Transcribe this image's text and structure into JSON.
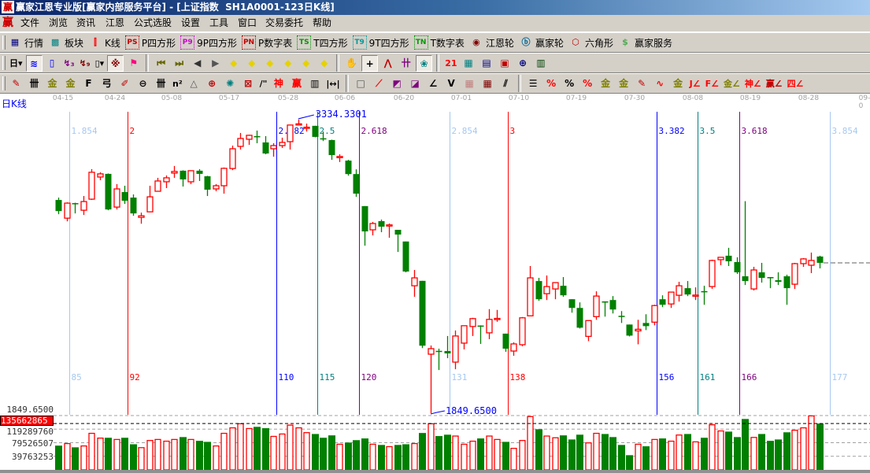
{
  "window": {
    "title": "赢家江恩专业版[赢家内部服务平台] - [上证指数  SH1A0001-123日K线]",
    "logo_text": "赢"
  },
  "menu": {
    "logo_text": "赢",
    "items": [
      "文件",
      "浏览",
      "资讯",
      "江恩",
      "公式选股",
      "设置",
      "工具",
      "窗口",
      "交易委托",
      "帮助"
    ]
  },
  "toolbar_main": [
    {
      "icon": "quote-table-icon",
      "glyph": "▦",
      "color": "#000080",
      "label": "行情"
    },
    {
      "icon": "sector-grid-icon",
      "glyph": "▩",
      "color": "#008080",
      "label": "板块"
    },
    {
      "icon": "candlestick-icon",
      "glyph": "⫿",
      "color": "#ff0000",
      "label": "K线"
    },
    {
      "icon": "ps-box-icon",
      "glyph": "PS",
      "color": "#c00000",
      "label": "P四方形",
      "boxed": true
    },
    {
      "icon": "p9-box-icon",
      "glyph": "P9",
      "color": "#cc00cc",
      "label": "9P四方形",
      "boxed": true
    },
    {
      "icon": "pn-box-icon",
      "glyph": "PN",
      "color": "#c00000",
      "label": "P数字表",
      "boxed": true
    },
    {
      "icon": "ts-box-icon",
      "glyph": "TS",
      "color": "#009900",
      "label": "T四方形",
      "boxed": true
    },
    {
      "icon": "t9-box-icon",
      "glyph": "T9",
      "color": "#009999",
      "label": "9T四方形",
      "boxed": true
    },
    {
      "icon": "tn-box-icon",
      "glyph": "TN",
      "color": "#009900",
      "label": "T数字表",
      "boxed": true
    },
    {
      "icon": "gann-wheel-icon",
      "glyph": "◉",
      "color": "#800000",
      "label": "江恩轮"
    },
    {
      "icon": "winner-wheel-icon",
      "glyph": "ⓑ",
      "color": "#006699",
      "label": "赢家轮"
    },
    {
      "icon": "hexagon-icon",
      "glyph": "⬡",
      "color": "#c00000",
      "label": "六角形"
    },
    {
      "icon": "dollar-service-icon",
      "glyph": "$",
      "color": "#55aa55",
      "label": "赢家服务"
    }
  ],
  "toolbar_tools": [
    [
      {
        "icon": "period-day-dropdown",
        "glyph": "日▾",
        "color": "#000"
      },
      {
        "icon": "wave-chart-icon",
        "glyph": "≋",
        "color": "#0000ff",
        "pressed": true
      },
      {
        "icon": "clipboard-icon",
        "glyph": "▯",
        "color": "#0000ff"
      },
      {
        "icon": "wave-3-icon",
        "glyph": "↯₃",
        "color": "#800080"
      },
      {
        "icon": "wave-9-icon",
        "glyph": "↯₉",
        "color": "#800000"
      },
      {
        "icon": "candle-type-dropdown",
        "glyph": "▯▾",
        "color": "#000"
      },
      {
        "icon": "pattern-icon",
        "glyph": "※",
        "color": "#800000",
        "pressed": true
      },
      {
        "icon": "flag-icon",
        "glyph": "⚑",
        "color": "#ff0080"
      }
    ],
    [
      {
        "icon": "first-page-icon",
        "glyph": "⏮",
        "color": "#666600"
      },
      {
        "icon": "last-page-icon",
        "glyph": "⏭",
        "color": "#666600"
      },
      {
        "icon": "scroll-left-icon",
        "glyph": "◀",
        "color": "#333"
      },
      {
        "icon": "scroll-right-icon",
        "glyph": "▶",
        "color": "#555"
      },
      {
        "icon": "move-left-icon",
        "glyph": "◆",
        "color": "#e6d200"
      },
      {
        "icon": "move-right-icon",
        "glyph": "◆",
        "color": "#e6d200"
      },
      {
        "icon": "expand-horizontal-icon",
        "glyph": "◆",
        "color": "#e6d200"
      },
      {
        "icon": "shrink-horizontal-icon",
        "glyph": "◆",
        "color": "#e6d200"
      },
      {
        "icon": "expand-all-icon",
        "glyph": "◆",
        "color": "#e6d200"
      },
      {
        "icon": "shrink-all-icon",
        "glyph": "◆",
        "color": "#e6d200"
      }
    ],
    [
      {
        "icon": "hand-pan-icon",
        "glyph": "✋",
        "color": "#000"
      },
      {
        "icon": "crosshair-icon",
        "glyph": "+",
        "color": "#000",
        "pressed": true
      },
      {
        "icon": "line-draw-icon",
        "glyph": "⋀",
        "color": "#c00000"
      },
      {
        "icon": "indicator-icon",
        "glyph": "卄",
        "color": "#800080"
      },
      {
        "icon": "brain-icon",
        "glyph": "❀",
        "color": "#008080",
        "pressed": true
      }
    ],
    [
      {
        "icon": "calendar-icon",
        "glyph": "21",
        "color": "#ff0000"
      },
      {
        "icon": "calculator-icon",
        "glyph": "▦",
        "color": "#008080"
      },
      {
        "icon": "notepad-icon",
        "glyph": "▤",
        "color": "#000080"
      },
      {
        "icon": "save-disk-icon",
        "glyph": "▣",
        "color": "#c00000"
      },
      {
        "icon": "network-icon",
        "glyph": "⊕",
        "color": "#000080"
      },
      {
        "icon": "printer-icon",
        "glyph": "▥",
        "color": "#004000"
      }
    ]
  ],
  "toolbar_draw": [
    [
      {
        "icon": "pen-icon",
        "glyph": "✎",
        "color": "#c00000"
      },
      {
        "icon": "hash-lines-icon",
        "glyph": "卌",
        "color": "#000"
      },
      {
        "icon": "gold-lines-icon",
        "glyph": "金",
        "color": "#808000"
      },
      {
        "icon": "gold-split-icon",
        "glyph": "金",
        "color": "#808000"
      },
      {
        "icon": "fibonacci-f-icon",
        "glyph": "F",
        "color": "#000"
      },
      {
        "icon": "spiral-icon",
        "glyph": "弓",
        "color": "#000"
      },
      {
        "icon": "marker-pen-icon",
        "glyph": "✐",
        "color": "#c00000"
      },
      {
        "icon": "circle-cycle-icon",
        "glyph": "⊖",
        "color": "#000"
      },
      {
        "icon": "period-lines-icon",
        "glyph": "卌",
        "color": "#000"
      },
      {
        "icon": "n-squared-icon",
        "glyph": "n²",
        "color": "#000"
      },
      {
        "icon": "triangle-icon",
        "glyph": "△",
        "color": "#555"
      },
      {
        "icon": "target-icon",
        "glyph": "⊕",
        "color": "#c00000"
      },
      {
        "icon": "web-icon",
        "glyph": "✺",
        "color": "#008080"
      },
      {
        "icon": "web-square-icon",
        "glyph": "⊠",
        "color": "#c00000"
      },
      {
        "icon": "angle-lines-icon",
        "glyph": "/\"",
        "color": "#000"
      },
      {
        "icon": "shen-icon",
        "glyph": "神",
        "color": "#ff0000"
      },
      {
        "icon": "ying-icon",
        "glyph": "赢",
        "color": "#ff0000"
      },
      {
        "icon": "ruler-icon",
        "glyph": "▥",
        "color": "#000"
      },
      {
        "icon": "measure-width-icon",
        "glyph": "|↔|",
        "color": "#000"
      }
    ],
    [
      {
        "icon": "box-icon",
        "glyph": "□",
        "color": "#555"
      },
      {
        "icon": "fan-lines-icon",
        "glyph": "⟋",
        "color": "#ff0000"
      },
      {
        "icon": "box-fan-icon",
        "glyph": "◩",
        "color": "#800080"
      },
      {
        "icon": "box-fan-down-icon",
        "glyph": "◪",
        "color": "#800080"
      },
      {
        "icon": "angle-fan-icon",
        "glyph": "∠",
        "color": "#000"
      },
      {
        "icon": "v-lines-icon",
        "glyph": "V",
        "color": "#000"
      },
      {
        "icon": "grid-icon",
        "glyph": "▦",
        "color": "#c08080"
      },
      {
        "icon": "grid-arrow-icon",
        "glyph": "▦",
        "color": "#800000"
      },
      {
        "icon": "parallel-lines-icon",
        "glyph": "⫽",
        "color": "#000"
      }
    ],
    [
      {
        "icon": "table-lines-icon",
        "glyph": "☰",
        "color": "#000"
      },
      {
        "icon": "percent-slash-icon",
        "glyph": "%",
        "color": "#ff0000"
      },
      {
        "icon": "percent-icon",
        "glyph": "%",
        "color": "#000"
      },
      {
        "icon": "percent-lines-icon",
        "glyph": "%",
        "color": "#ff0000"
      },
      {
        "icon": "gold-circle-icon",
        "glyph": "金",
        "color": "#808000"
      },
      {
        "icon": "gold-bars-icon",
        "glyph": "金",
        "color": "#808000"
      },
      {
        "icon": "pen-stand-icon",
        "glyph": "✎",
        "color": "#c00000"
      },
      {
        "icon": "wave-box-icon",
        "glyph": "∿",
        "color": "#ff0000"
      },
      {
        "icon": "gold-box-icon",
        "glyph": "金",
        "color": "#808000"
      },
      {
        "icon": "j-angle-icon",
        "glyph": "J∠",
        "color": "#ff0000"
      },
      {
        "icon": "f-angle-icon",
        "glyph": "F∠",
        "color": "#ff0000"
      },
      {
        "icon": "gold-angle-icon",
        "glyph": "金∠",
        "color": "#808000"
      },
      {
        "icon": "shen-angle-icon",
        "glyph": "神∠",
        "color": "#ff0000"
      },
      {
        "icon": "ying-angle-icon",
        "glyph": "赢∠",
        "color": "#c00000"
      },
      {
        "icon": "si-angle-icon",
        "glyph": "四∠",
        "color": "#ff0000"
      }
    ]
  ],
  "chart_data": {
    "type": "candlestick",
    "period_label": "日K线",
    "x_tick_labels": [
      "04-15",
      "04-24",
      "05-08",
      "05-17",
      "05-28",
      "06-06",
      "06-20",
      "07-01",
      "07-10",
      "07-19",
      "07-30",
      "08-08",
      "08-19",
      "08-28",
      "09-0"
    ],
    "colors": {
      "up": "#ff0000",
      "down": "#008000"
    },
    "ohlc_fields": [
      "open",
      "high",
      "low",
      "close"
    ],
    "ohlc": [
      [
        2928,
        2940,
        2856,
        2872
      ],
      [
        2836,
        2916,
        2820,
        2912
      ],
      [
        2912,
        2914,
        2860,
        2910
      ],
      [
        2876,
        2948,
        2852,
        2920
      ],
      [
        2932,
        3084,
        2928,
        3068
      ],
      [
        3044,
        3068,
        3028,
        3060
      ],
      [
        3060,
        3062,
        2876,
        2880
      ],
      [
        2892,
        3008,
        2880,
        2984
      ],
      [
        2968,
        3000,
        2908,
        2924
      ],
      [
        2940,
        2956,
        2848,
        2860
      ],
      [
        2840,
        2864,
        2808,
        2848
      ],
      [
        2868,
        3000,
        2866,
        2944
      ],
      [
        2972,
        3040,
        2970,
        3024
      ],
      [
        3020,
        3052,
        2988,
        3040
      ],
      [
        3064,
        3100,
        3040,
        3072
      ],
      [
        3076,
        3078,
        2996,
        3032
      ],
      [
        3020,
        3078,
        3008,
        3076
      ],
      [
        3076,
        3084,
        3024,
        3060
      ],
      [
        3048,
        3050,
        2948,
        2980
      ],
      [
        2984,
        3008,
        2972,
        3000
      ],
      [
        3000,
        3092,
        2960,
        3088
      ],
      [
        3087,
        3203,
        3079,
        3187
      ],
      [
        3199,
        3267,
        3183,
        3239
      ],
      [
        3235,
        3258,
        3207,
        3255
      ],
      [
        3251,
        3279,
        3215,
        3249
      ],
      [
        3219,
        3251,
        3159,
        3163
      ],
      [
        3187,
        3215,
        3147,
        3203
      ],
      [
        3203,
        3243,
        3191,
        3219
      ],
      [
        3223,
        3309,
        3183,
        3307
      ],
      [
        3310,
        3334.33,
        3307,
        3313
      ],
      [
        3294,
        3314,
        3274,
        3296
      ],
      [
        3303,
        3303,
        3245,
        3247
      ],
      [
        3240,
        3274,
        3226,
        3238
      ],
      [
        3231,
        3233,
        3131,
        3155
      ],
      [
        3146,
        3159,
        3120,
        3148
      ],
      [
        3127,
        3131,
        3051,
        3059
      ],
      [
        3059,
        3083,
        2944,
        2960
      ],
      [
        2897,
        2897,
        2697,
        2769
      ],
      [
        2777,
        2817,
        2749,
        2809
      ],
      [
        2821,
        2829,
        2765,
        2793
      ],
      [
        2800,
        2809,
        2737,
        2802
      ],
      [
        2777,
        2777,
        2665,
        2753
      ],
      [
        2718,
        2718,
        2562,
        2566
      ],
      [
        2494,
        2574,
        2438,
        2534
      ],
      [
        2519,
        2519,
        2179,
        2191
      ],
      [
        2148,
        2192,
        1849.65,
        2176
      ],
      [
        2165,
        2176,
        2068,
        2163
      ],
      [
        2164,
        2240,
        2128,
        2152
      ],
      [
        2108,
        2268,
        2072,
        2240
      ],
      [
        2204,
        2292,
        2172,
        2292
      ],
      [
        2288,
        2332,
        2240,
        2328
      ],
      [
        2293,
        2294,
        2200,
        2290
      ],
      [
        2256,
        2376,
        2224,
        2324
      ],
      [
        2327,
        2372,
        2312,
        2329
      ],
      [
        2252,
        2252,
        2160,
        2176
      ],
      [
        2164,
        2208,
        2140,
        2200
      ],
      [
        2196,
        2336,
        2188,
        2332
      ],
      [
        2342,
        2594,
        2342,
        2534
      ],
      [
        2518,
        2534,
        2418,
        2426
      ],
      [
        2454,
        2546,
        2422,
        2490
      ],
      [
        2478,
        2510,
        2426,
        2510
      ],
      [
        2494,
        2538,
        2438,
        2446
      ],
      [
        2426,
        2426,
        2358,
        2382
      ],
      [
        2382,
        2410,
        2278,
        2282
      ],
      [
        2238,
        2318,
        2214,
        2318
      ],
      [
        2338,
        2466,
        2322,
        2442
      ],
      [
        2415,
        2415,
        2338,
        2413
      ],
      [
        2422,
        2442,
        2354,
        2374
      ],
      [
        2342,
        2366,
        2306,
        2340
      ],
      [
        2298,
        2298,
        2238,
        2242
      ],
      [
        2266,
        2322,
        2198,
        2274
      ],
      [
        2306,
        2350,
        2270,
        2290
      ],
      [
        2310,
        2398,
        2294,
        2394
      ],
      [
        2426,
        2446,
        2386,
        2398
      ],
      [
        2402,
        2462,
        2382,
        2462
      ],
      [
        2446,
        2514,
        2414,
        2494
      ],
      [
        2482,
        2518,
        2442,
        2450
      ],
      [
        2445,
        2486,
        2422,
        2447
      ],
      [
        2467,
        2494,
        2398,
        2465
      ],
      [
        2490,
        2626,
        2478,
        2622
      ],
      [
        2626,
        2638,
        2598,
        2638
      ],
      [
        2646,
        2686,
        2594,
        2618
      ],
      [
        2614,
        2638,
        2554,
        2562
      ],
      [
        2542,
        2922,
        2498,
        2518
      ],
      [
        2478,
        2590,
        2470,
        2574
      ],
      [
        2562,
        2610,
        2510,
        2534
      ],
      [
        2538,
        2538,
        2482,
        2534
      ],
      [
        2522,
        2562,
        2498,
        2514
      ],
      [
        2542,
        2550,
        2398,
        2482
      ],
      [
        2502,
        2610,
        2478,
        2606
      ],
      [
        2606,
        2634,
        2590,
        2630
      ],
      [
        2598,
        2662,
        2558,
        2622
      ],
      [
        2642,
        2646,
        2582,
        2610
      ]
    ],
    "volume": [
      71000000.0,
      77000000.0,
      66000000.0,
      70000000.0,
      107000000.0,
      93000000.0,
      94000000.0,
      89000000.0,
      94000000.0,
      75000000.0,
      65000000.0,
      86000000.0,
      89000000.0,
      84000000.0,
      89000000.0,
      96000000.0,
      89000000.0,
      85000000.0,
      82000000.0,
      70000000.0,
      107000000.0,
      123000000.0,
      135000000.0,
      121000000.0,
      126000000.0,
      122000000.0,
      98000000.0,
      105000000.0,
      131000000.0,
      123000000.0,
      109000000.0,
      105000000.0,
      94000000.0,
      101000000.0,
      75000000.0,
      80000000.0,
      87000000.0,
      92000000.0,
      75000000.0,
      73000000.0,
      68000000.0,
      73000000.0,
      75000000.0,
      77000000.0,
      108000000.0,
      135000000.0,
      99000000.0,
      103000000.0,
      99000000.0,
      75000000.0,
      84000000.0,
      92000000.0,
      99000000.0,
      89000000.0,
      82000000.0,
      63000000.0,
      86000000.0,
      156000000.0,
      119000000.0,
      99000000.0,
      94000000.0,
      101000000.0,
      89000000.0,
      103000000.0,
      79000000.0,
      107000000.0,
      105000000.0,
      96000000.0,
      73000000.0,
      43000000.0,
      75000000.0,
      69000000.0,
      89000000.0,
      92000000.0,
      84000000.0,
      102000000.0,
      105000000.0,
      82000000.0,
      94000000.0,
      132000000.0,
      114000000.0,
      112000000.0,
      96000000.0,
      149000000.0,
      95000000.0,
      105000000.0,
      85000000.0,
      89000000.0,
      110000000.0,
      116000000.0,
      123000000.0,
      158000000.0,
      135662865
    ],
    "price_range": [
      1849.65,
      3334.33
    ],
    "high_label": "3334.3301",
    "low_label": "1849.6500",
    "price_axis_label": "1849.6500",
    "volume_axis": {
      "ticks": [
        39763253,
        79526507,
        119289760
      ],
      "tick_labels": [
        "39763253",
        "79526507",
        "119289760"
      ],
      "max": 159053013
    },
    "current_volume_label": "135662865",
    "fib_time_lines": [
      {
        "ratio": "1.854",
        "day": "85",
        "color": "#a6c8f0"
      },
      {
        "ratio": "2",
        "day": "92",
        "color": "#ff0000"
      },
      {
        "ratio": "2.382",
        "day": "110",
        "color": "#0000ff"
      },
      {
        "ratio": "2.5",
        "day": "115",
        "color": "#008080"
      },
      {
        "ratio": "2.618",
        "day": "120",
        "color": "#800080"
      },
      {
        "ratio": "2.854",
        "day": "131",
        "color": "#a6c8f0"
      },
      {
        "ratio": "3",
        "day": "138",
        "color": "#ff0000"
      },
      {
        "ratio": "3.382",
        "day": "156",
        "color": "#0000ff"
      },
      {
        "ratio": "3.5",
        "day": "161",
        "color": "#008080"
      },
      {
        "ratio": "3.618",
        "day": "166",
        "color": "#800080"
      },
      {
        "ratio": "3.854",
        "day": "177",
        "color": "#a6c8f0"
      }
    ],
    "grid": false
  }
}
